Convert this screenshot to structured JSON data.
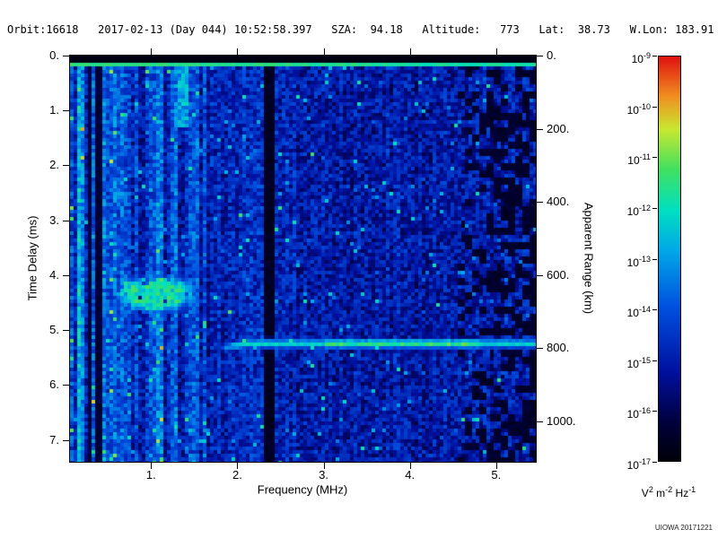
{
  "header": {
    "text": "Orbit:16618   2017-02-13 (Day 044) 10:52:58.397   SZA:  94.18   Altitude:   773   Lat:  38.73   W.Lon: 183.91",
    "orbit": "16618",
    "date": "2017-02-13",
    "day": "044",
    "time": "10:52:58.397",
    "sza": "94.18",
    "altitude": "773",
    "lat": "38.73",
    "w_lon": "183.91"
  },
  "watermark": "UIOWA 20171221",
  "chart_data": {
    "type": "heatmap",
    "seed": 20171221,
    "x_axis": {
      "label": "Frequency (MHz)",
      "min": 0.06,
      "max": 5.46,
      "ticks": [
        1,
        2,
        3,
        4,
        5
      ]
    },
    "y_axis": {
      "label": "Time Delay (ms)",
      "min": 0,
      "max": 7.4,
      "ticks": [
        0,
        1,
        2,
        3,
        4,
        5,
        6,
        7
      ]
    },
    "y2_axis": {
      "label": "Apparent Range (km)",
      "ticks": [
        0,
        200,
        400,
        600,
        800,
        1000
      ],
      "km_per_ms": 150
    },
    "colorbar": {
      "exponents": [
        -9,
        -10,
        -11,
        -12,
        -13,
        -14,
        -15,
        -16,
        -17
      ],
      "unit_parts": [
        [
          "V",
          "2"
        ],
        [
          "m",
          "-2"
        ],
        [
          "Hz",
          "-1"
        ]
      ],
      "stops": [
        [
          0.0,
          "#000008"
        ],
        [
          0.1,
          "#000040"
        ],
        [
          0.22,
          "#0010a0"
        ],
        [
          0.38,
          "#0050e0"
        ],
        [
          0.52,
          "#00a8e8"
        ],
        [
          0.62,
          "#00e0c0"
        ],
        [
          0.72,
          "#40e060"
        ],
        [
          0.82,
          "#c8e830"
        ],
        [
          0.9,
          "#f09020"
        ],
        [
          1.0,
          "#e01010"
        ]
      ]
    },
    "features": {
      "background": {
        "base_low": 0.33,
        "base_high": 0.24,
        "noise_amp": 0.22,
        "speckle_prob": 0.03,
        "speckle_boost": 0.26
      },
      "top_black_band_ms": 0.1,
      "transmit_line": {
        "amp": 0.7,
        "thickness_ms": 0.12
      },
      "bright_column": {
        "f_min": 0.13,
        "f_max": 0.2,
        "boost": 0.25
      },
      "dark_columns": [
        [
          0.26,
          0.32
        ],
        [
          0.37,
          0.43
        ]
      ],
      "bright_streak": {
        "f_min": 1.32,
        "f_max": 1.42,
        "t_max": 1.3
      },
      "dark_band": {
        "f_min": 2.3,
        "f_max": 2.45
      },
      "ionosphere_echo": {
        "f_center": 1.05,
        "t_center": 4.35,
        "f_radius": 0.45,
        "t_radius": 0.32,
        "level": 0.63
      },
      "ground_echo": {
        "t_ms": 5.25,
        "f_start": 1.78,
        "level": 0.6,
        "green_f_min": 3.0,
        "green_f_max": 4.8,
        "green_boost": 0.1,
        "cusp_f": 2.1,
        "cusp_slope": 0.25
      },
      "right_dark_patches": {
        "f_start": 4.55,
        "prob": 0.5
      }
    }
  }
}
